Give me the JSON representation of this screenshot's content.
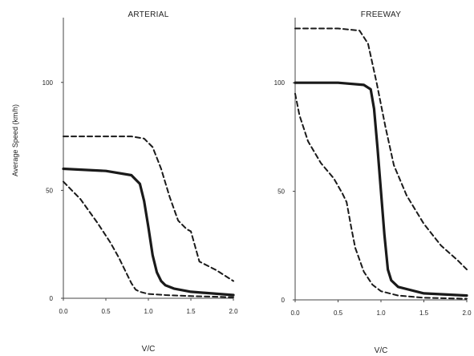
{
  "y_axis_label": "Average Speed (km/h)",
  "chart_data": [
    {
      "type": "line",
      "title": "ARTERIAL",
      "xlabel": "V/C",
      "ylabel": "Average Speed (km/h)",
      "xlim": [
        0,
        2.0
      ],
      "ylim": [
        0,
        130
      ],
      "x_ticks": [
        "0.0",
        "0.5",
        "1.0",
        "1.5",
        "2.0"
      ],
      "y_ticks": [
        "0",
        "50",
        "100"
      ],
      "series": [
        {
          "style": "dashed",
          "x": [
            0.0,
            0.8,
            0.95,
            1.05,
            1.15,
            1.25,
            1.35,
            1.45,
            1.5,
            1.55,
            1.6,
            1.8,
            2.0
          ],
          "y": [
            75,
            75,
            74,
            70,
            60,
            47,
            36,
            32,
            31,
            24,
            17,
            13,
            8
          ]
        },
        {
          "style": "solid",
          "x": [
            0.0,
            0.5,
            0.8,
            0.9,
            0.95,
            1.0,
            1.05,
            1.1,
            1.15,
            1.2,
            1.3,
            1.5,
            2.0
          ],
          "y": [
            60,
            59,
            57,
            53,
            45,
            33,
            20,
            12,
            8,
            6,
            4.5,
            3,
            1.5
          ]
        },
        {
          "style": "dashed",
          "x": [
            0.0,
            0.2,
            0.4,
            0.55,
            0.65,
            0.75,
            0.8,
            0.85,
            0.9,
            1.0,
            1.2,
            1.5,
            2.0
          ],
          "y": [
            54,
            46,
            35,
            26,
            19,
            11,
            7,
            4,
            3,
            2,
            1.5,
            1,
            0.5
          ]
        }
      ]
    },
    {
      "type": "line",
      "title": "FREEWAY",
      "xlabel": "V/C",
      "ylabel": "",
      "xlim": [
        0,
        2.0
      ],
      "ylim": [
        0,
        130
      ],
      "x_ticks": [
        "0.0",
        "0.5",
        "1.0",
        "1.5",
        "2.0"
      ],
      "y_ticks": [
        "0",
        "50",
        "100"
      ],
      "series": [
        {
          "style": "dashed",
          "x": [
            0.0,
            0.5,
            0.75,
            0.85,
            0.95,
            1.05,
            1.15,
            1.3,
            1.5,
            1.7,
            1.9,
            2.0
          ],
          "y": [
            125,
            125,
            124,
            118,
            100,
            80,
            62,
            48,
            35,
            25,
            18,
            14
          ]
        },
        {
          "style": "solid",
          "x": [
            0.0,
            0.5,
            0.8,
            0.88,
            0.92,
            0.96,
            1.0,
            1.04,
            1.08,
            1.12,
            1.2,
            1.5,
            2.0
          ],
          "y": [
            100,
            100,
            99,
            97,
            88,
            70,
            50,
            30,
            14,
            9,
            6,
            3,
            2
          ]
        },
        {
          "style": "dashed",
          "x": [
            0.0,
            0.05,
            0.15,
            0.3,
            0.45,
            0.55,
            0.6,
            0.65,
            0.7,
            0.8,
            0.9,
            1.0,
            1.2,
            1.5,
            2.0
          ],
          "y": [
            95,
            85,
            73,
            63,
            56,
            49,
            45,
            34,
            24,
            13,
            7,
            4,
            2,
            1,
            0.5
          ]
        }
      ]
    }
  ]
}
